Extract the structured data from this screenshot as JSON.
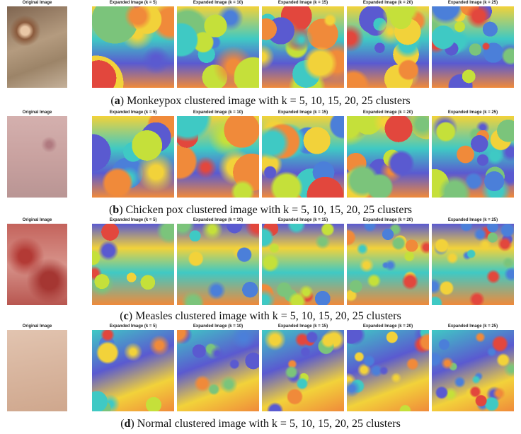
{
  "rows": [
    {
      "caption": [
        "(",
        "a",
        ") Monkeypox clustered image with k = 5, 10, 15, 20, 25 clusters"
      ],
      "panels": [
        "Original Image",
        "Expanded Image (k = 5)",
        "Expanded Image (k = 10)",
        "Expanded Image (k = 15)",
        "Expanded Image (k = 20)",
        "Expanded Image (k = 25)"
      ]
    },
    {
      "caption": [
        "(",
        "b",
        ") Chicken pox clustered image with k = 5, 10, 15, 20, 25 clusters"
      ],
      "panels": [
        "Original Image",
        "Expanded Image (k = 5)",
        "Expanded Image (k = 10)",
        "Expanded Image (k = 15)",
        "Expanded Image (k = 20)",
        "Expanded Image (k = 25)"
      ]
    },
    {
      "caption": [
        "(",
        "c",
        ") Measles clustered image with k = 5, 10, 15, 20, 25 clusters"
      ],
      "panels": [
        "Original Image",
        "Expanded Image (k = 5)",
        "Expanded Image (k = 10)",
        "Expanded Image (k = 15)",
        "Expanded Image (k = 20)",
        "Expanded Image (k = 25)"
      ]
    },
    {
      "caption": [
        "(",
        "d",
        ") Normal clustered image with k = 5, 10, 15, 20, 25 clusters"
      ],
      "panels": [
        "Original Image",
        "Expanded Image (k = 5)",
        "Expanded Image (k = 10)",
        "Expanded Image (k = 15)",
        "Expanded Image (k = 20)",
        "Expanded Image (k = 25)"
      ]
    }
  ]
}
